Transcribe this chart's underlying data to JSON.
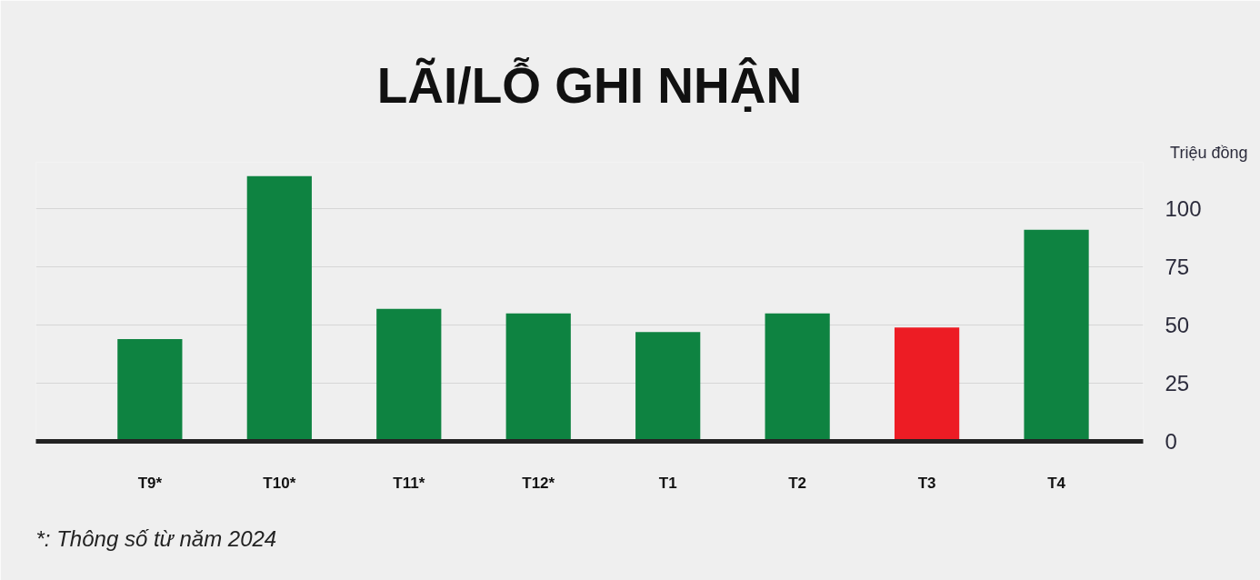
{
  "chart_data": {
    "type": "bar",
    "title": "LÃI/LỖ GHI NHẬN",
    "ylabel": "Triệu đồng",
    "categories": [
      "T9*",
      "T10*",
      "T11*",
      "T12*",
      "T1",
      "T2",
      "T3",
      "T4"
    ],
    "values": [
      44,
      114,
      57,
      55,
      47,
      55,
      49,
      91
    ],
    "colors": [
      "#0e8341",
      "#0e8341",
      "#0e8341",
      "#0e8341",
      "#0e8341",
      "#0e8341",
      "#ed1c24",
      "#0e8341"
    ],
    "ylim": [
      0,
      120
    ],
    "yticks": [
      0,
      25,
      50,
      75,
      100
    ],
    "grid": "y",
    "annotations": [
      "*: Thông số từ năm 2024"
    ]
  }
}
